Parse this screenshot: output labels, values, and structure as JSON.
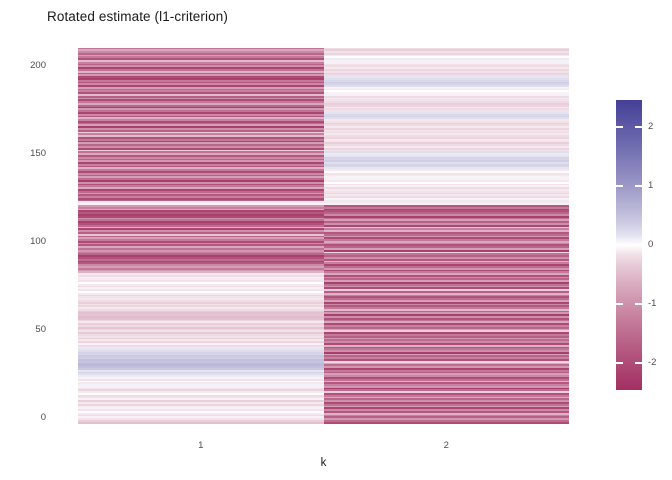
{
  "header": {
    "title": "Rotated estimate (l1-criterion)"
  },
  "chart_data": {
    "type": "heatmap",
    "title": "Rotated estimate (l1-criterion)",
    "xlabel": "k",
    "ylabel": "",
    "categories": [
      "1",
      "2"
    ],
    "y_ticks": [
      0,
      50,
      100,
      150,
      200
    ],
    "ylim": [
      0,
      210
    ],
    "n_rows": 210,
    "row_order": "bottom_to_top",
    "grid": false,
    "legend": {
      "position": "right",
      "tick_labels": [
        "2",
        "1",
        "0",
        "-1",
        "-2"
      ],
      "tick_values": [
        2,
        1,
        0,
        -1,
        -2
      ],
      "limits": [
        -2.45,
        2.45
      ]
    },
    "colors": {
      "low": "#A23062",
      "mid": "#FFFFFF",
      "high": "#454097",
      "axis_text": "#4D4D4D",
      "title_text": "#1A1A1A",
      "background": "#FFFFFF"
    },
    "series": [
      {
        "name": "k=1",
        "values": [
          -0.45,
          -0.3,
          -0.15,
          -0.05,
          -0.2,
          -0.1,
          0,
          -0.15,
          -0.05,
          -0.1,
          -0.25,
          -0.1,
          -0.3,
          -0.05,
          -0.15,
          -0.2,
          0,
          -0.1,
          -0.25,
          -0.15,
          -0.05,
          0.05,
          -0.1,
          0,
          -0.15,
          -0.05,
          0.1,
          0.2,
          0.3,
          0.15,
          0.4,
          0.5,
          0.6,
          0.55,
          0.45,
          0.5,
          0.35,
          0.4,
          0.25,
          0.3,
          0.2,
          0.15,
          -0.1,
          -0.2,
          -0.05,
          -0.25,
          -0.1,
          -0.3,
          -0.15,
          -0.2,
          -0.35,
          -0.15,
          -0.25,
          -0.4,
          -0.2,
          -0.3,
          -0.1,
          -0.25,
          -0.45,
          -0.5,
          -0.4,
          -0.45,
          -0.35,
          -0.2,
          -0.1,
          -0.25,
          -0.15,
          -0.3,
          -0.2,
          -0.1,
          -0.15,
          -0.25,
          -0.1,
          0,
          -0.15,
          -0.05,
          -0.2,
          -0.1,
          0,
          -0.15,
          -0.1,
          -0.05,
          -0.2,
          -0.1,
          -0.6,
          -0.9,
          -1.3,
          -0.8,
          -1.1,
          -1.8,
          -2.1,
          -1.5,
          -1.9,
          -2.2,
          -1.6,
          -1.2,
          -0.9,
          -1.4,
          -0.7,
          -1.8,
          -1.1,
          -2.0,
          -1.3,
          -0.8,
          -1.6,
          -0.4,
          -1.7,
          -1.0,
          -2.1,
          -0.6,
          -1.5,
          -1.9,
          -2.2,
          -1.4,
          -1.0,
          -2.0,
          -2.2,
          -1.8,
          -2.1,
          -0.7,
          -1.2,
          -0.9,
          -0.05,
          -0.1,
          -1.6,
          -2.0,
          -1.2,
          -1.8,
          -0.9,
          -1.5,
          -2.1,
          -0.7,
          -1.3,
          -1.9,
          -1.0,
          -2.2,
          -1.5,
          -0.8,
          -1.7,
          -1.1,
          -2.0,
          -1.3,
          -0.6,
          -1.8,
          -1.2,
          -2.1,
          -0.9,
          -1.6,
          -1.1,
          -1.8,
          -0.7,
          -1.4,
          -0.3,
          -2.0,
          -1.0,
          -1.6,
          -0.8,
          -2.1,
          -1.3,
          -1.9,
          -0.5,
          -1.2,
          -0.3,
          -1.7,
          -1.0,
          -2.2,
          -0.8,
          -1.5,
          -2.0,
          -1.2,
          -0.6,
          -1.8,
          -1.1,
          -2.1,
          -1.4,
          -0.9,
          -2.2,
          -1.6,
          -0.7,
          -1.3,
          -2.0,
          -1.0,
          -1.7,
          -0.5,
          -1.9,
          -1.2,
          -1.5,
          -0.8,
          -2.1,
          -1.1,
          -1.8,
          -1.3,
          -2.2,
          -2.0,
          -0.9,
          -1.6,
          -0.6,
          -1.4,
          -2.1,
          -1.0,
          -1.7,
          -1.2,
          -0.5,
          -1.9,
          -1.3,
          -0.8,
          -1.6,
          -1.1,
          -0.7,
          -1.4
        ]
      },
      {
        "name": "k=2",
        "values": [
          -2.0,
          -1.5,
          -0.9,
          -1.7,
          -1.2,
          -0.6,
          -1.8,
          -1.1,
          -2.1,
          -0.8,
          -1.4,
          -2.0,
          -1.0,
          -1.6,
          -0.7,
          -1.3,
          -1.9,
          -0.3,
          -1.5,
          -2.2,
          -0.9,
          -1.2,
          -1.8,
          -0.6,
          -1.4,
          -2.0,
          -1.1,
          -0.8,
          -1.7,
          -1.3,
          -2.1,
          -0.9,
          -1.5,
          -0.7,
          -0.25,
          -1.9,
          -1.2,
          -1.6,
          -0.8,
          -2.2,
          -1.0,
          -1.4,
          -1.8,
          -0.6,
          -2.0,
          -1.1,
          -1.5,
          -0.9,
          -1.7,
          -1.3,
          -2.1,
          -0.3,
          -0.8,
          -1.6,
          -1.2,
          -2.0,
          -0.7,
          -1.4,
          -1.9,
          -1.0,
          -2.2,
          -0.9,
          -1.6,
          -0.5,
          -1.3,
          -1.8,
          -1.1,
          -2.1,
          -0.8,
          -1.5,
          -1.9,
          -1.2,
          -0.6,
          -1.7,
          -0.3,
          -2.0,
          -1.0,
          -1.4,
          -2.2,
          -0.8,
          -1.6,
          -1.1,
          -1.9,
          -0.7,
          -1.3,
          -2.0,
          -0.9,
          -1.5,
          -2.1,
          -1.2,
          -0.6,
          -1.8,
          -1.0,
          -1.7,
          -1.4,
          -0.25,
          -2.2,
          -0.8,
          -1.6,
          -1.9,
          -1.1,
          -0.7,
          -1.3,
          -2.0,
          -0.9,
          -1.5,
          -1.8,
          -0.6,
          -1.2,
          -0.35,
          -2.1,
          -1.0,
          -1.7,
          -0.8,
          -1.4,
          -2.2,
          -1.1,
          -1.6,
          -1.9,
          -2.1,
          -1.3,
          -1.8,
          0.05,
          -0.1,
          0.1,
          -0.05,
          -0.2,
          -0.1,
          -0.25,
          -0.15,
          -0.1,
          -0.2,
          -0.05,
          -0.15,
          0,
          -0.1,
          0.05,
          -0.05,
          0.1,
          -0.15,
          0,
          -0.1,
          0.15,
          0.25,
          0.3,
          0.2,
          0.35,
          0.25,
          0.3,
          0.15,
          0.1,
          0.2,
          -0.15,
          -0.25,
          -0.1,
          -0.2,
          -0.3,
          -0.15,
          -0.1,
          -0.25,
          -0.2,
          -0.1,
          -0.2,
          -0.15,
          -0.25,
          -0.1,
          -0.2,
          -0.3,
          -0.15,
          -0.1,
          0.2,
          0.3,
          0.25,
          0.15,
          -0.15,
          -0.2,
          -0.1,
          -0.25,
          -0.3,
          -0.2,
          -0.15,
          -0.1,
          -0.2,
          0.05,
          -0.05,
          0,
          0.1,
          -0.05,
          0.2,
          0.3,
          0.35,
          0.25,
          0.2,
          0.15,
          -0.2,
          -0.3,
          -0.15,
          -0.25,
          -0.1,
          -0.2,
          -0.15,
          0.05,
          -0.05,
          0.1,
          0,
          -0.1,
          -0.25,
          -0.15,
          -0.3,
          -0.2
        ]
      }
    ]
  }
}
